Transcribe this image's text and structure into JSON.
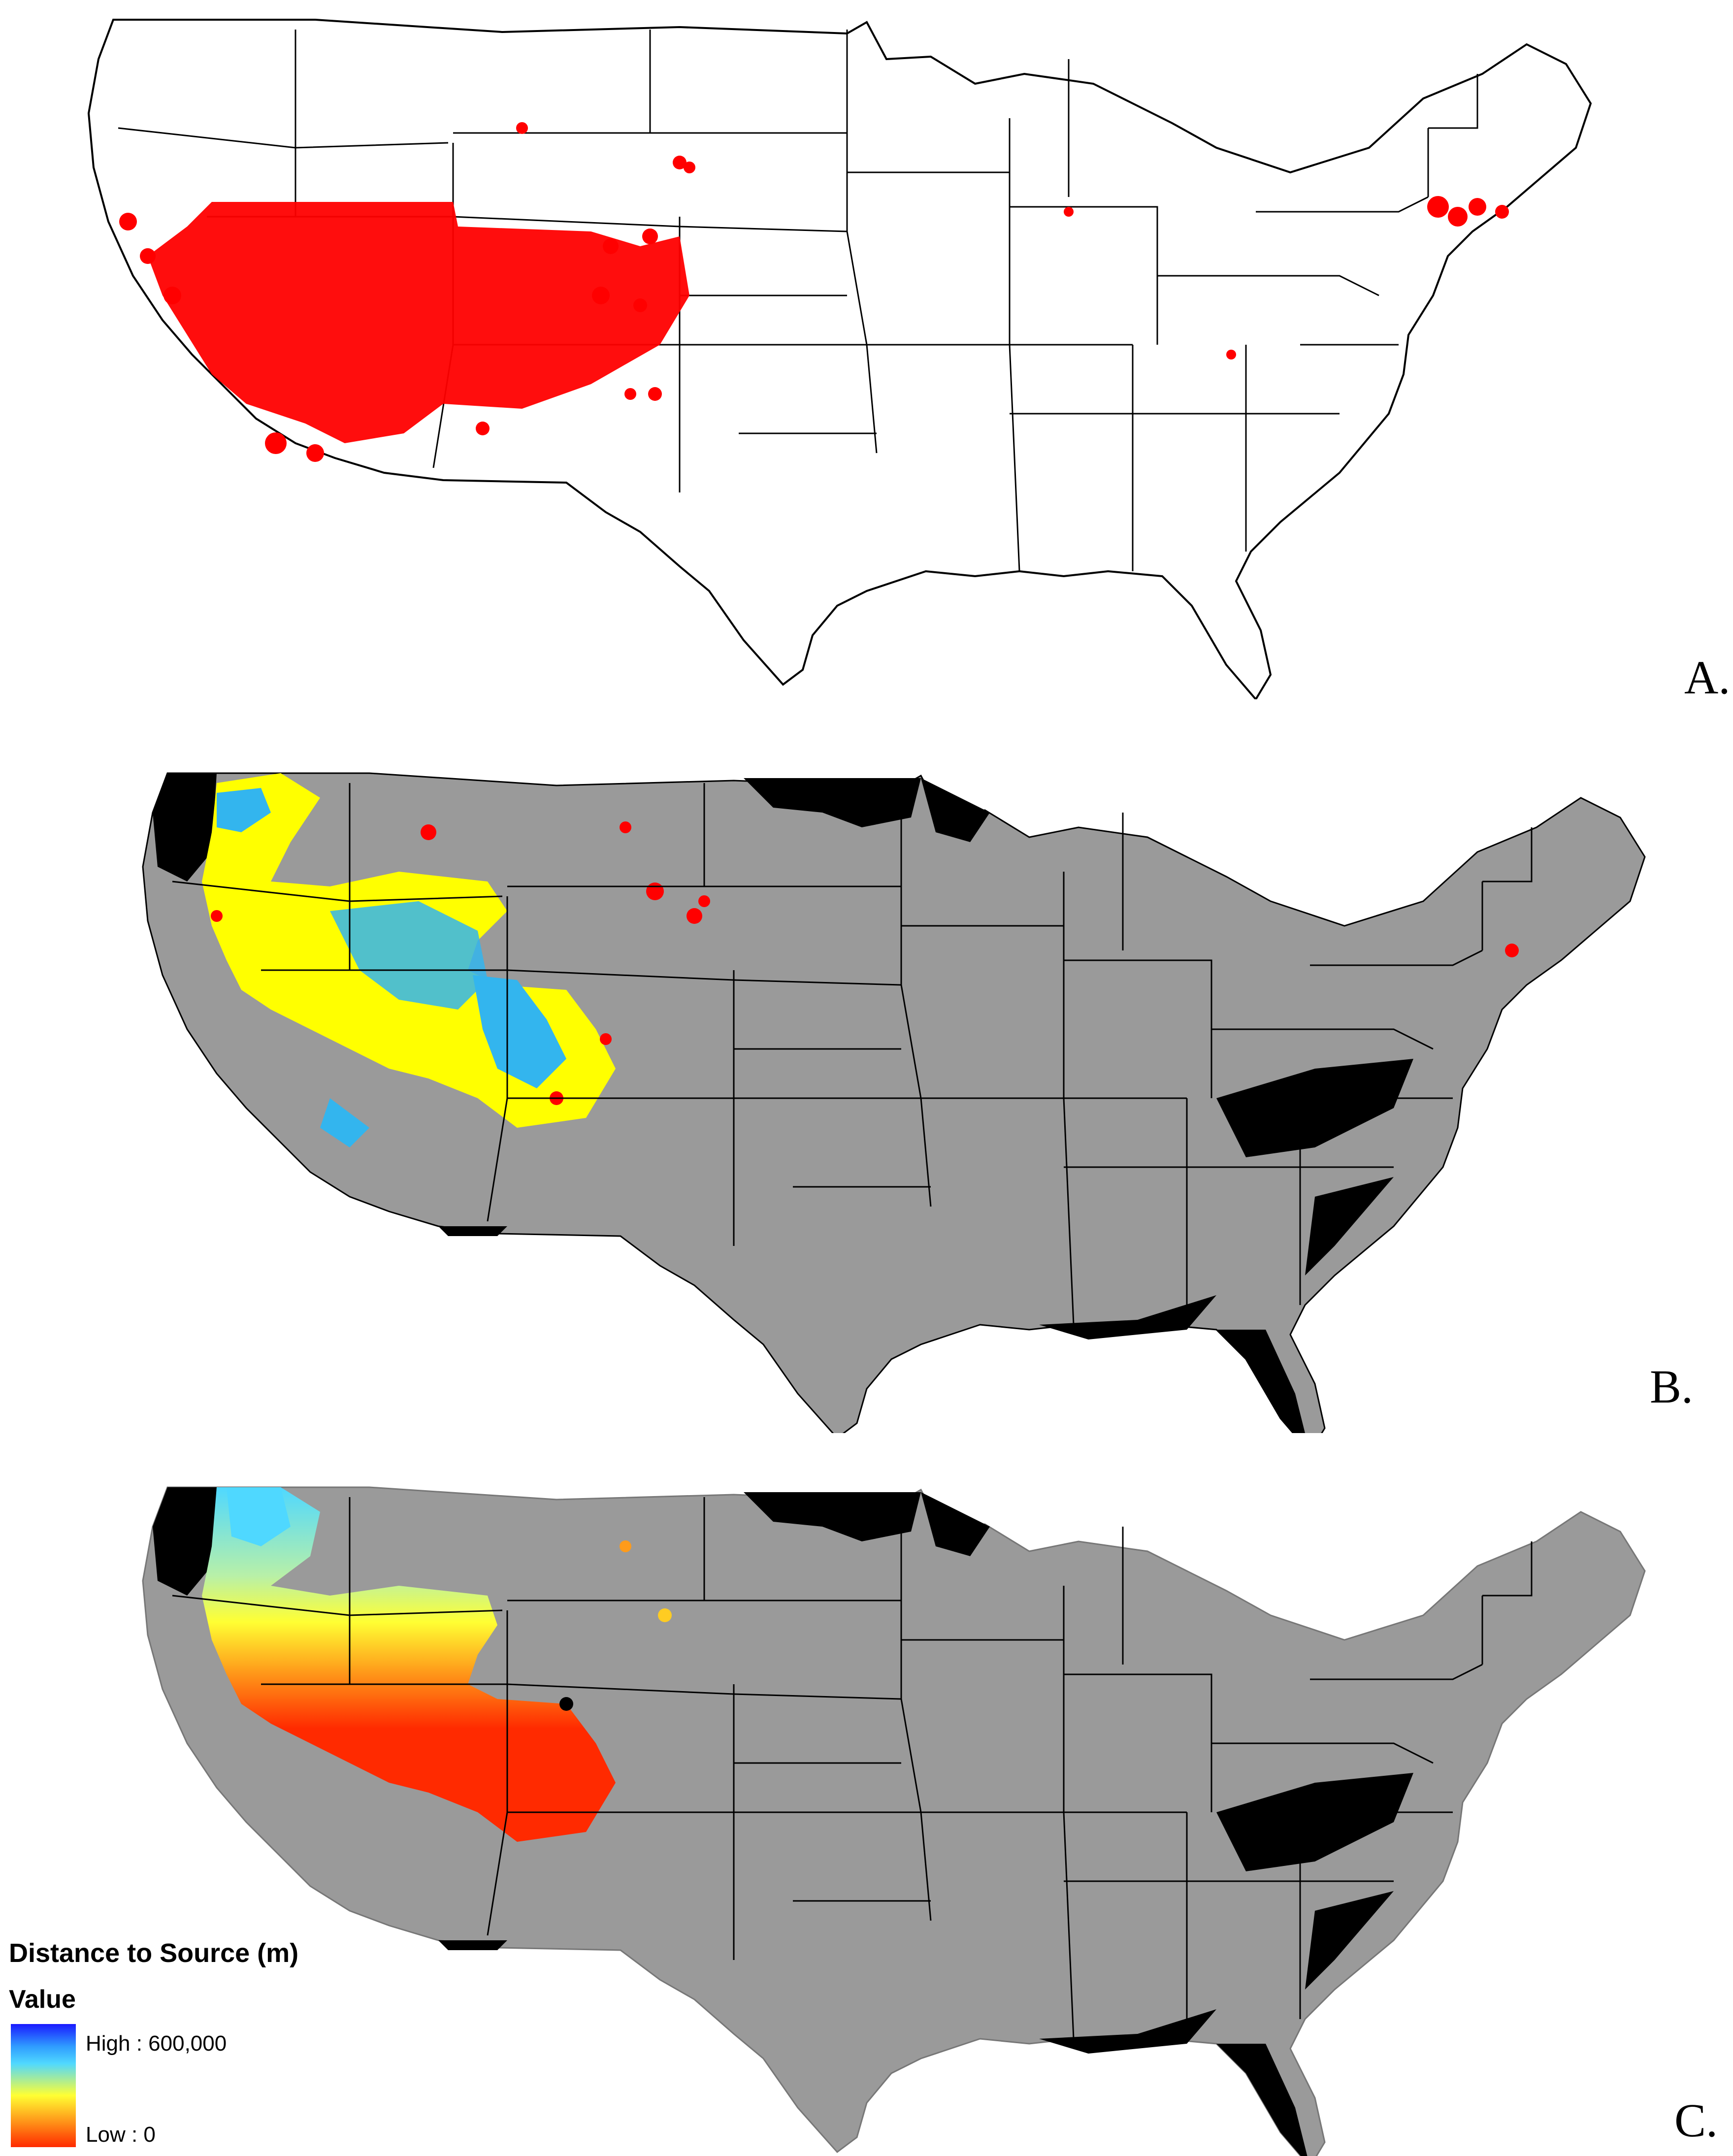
{
  "panels": [
    {
      "label": "A."
    },
    {
      "label": "B."
    },
    {
      "label": "C."
    }
  ],
  "legend": {
    "title": "Distance to Source (m)",
    "subtitle": "Value",
    "high_label": "High : 600,000",
    "low_label": "Low : 0"
  },
  "colors": {
    "occurrence_points": "#ff0000",
    "map_background": "#9a9a9a",
    "excluded_area": "#000000",
    "suitable_class_1": "#ffff00",
    "suitable_class_2": "#33b5ee",
    "suitable_class_3": "#ff0000",
    "distance_high": "#1a1aff",
    "distance_mid": "#ffff33",
    "distance_low": "#ff2a00"
  }
}
